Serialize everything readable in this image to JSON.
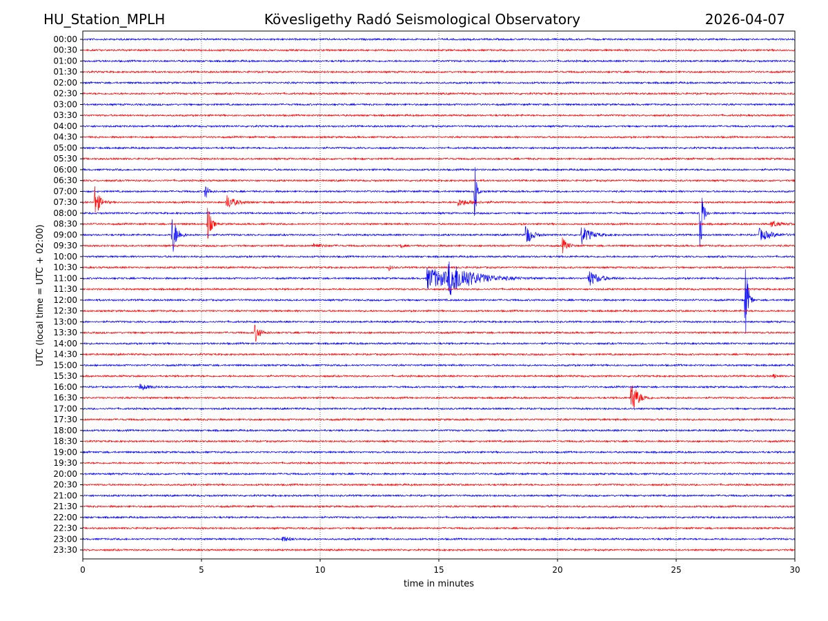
{
  "header": {
    "station": "HU_Station_MPLH",
    "title": "Kövesligethy Radó Seismological Observatory",
    "date": "2026-04-07"
  },
  "chart_data": {
    "type": "line",
    "subtype": "helicorder",
    "xlabel": "time in minutes",
    "ylabel": "UTC (local time = UTC + 02:00)",
    "xlim": [
      0,
      30
    ],
    "xticks": [
      "0",
      "5",
      "10",
      "15",
      "20",
      "25",
      "30"
    ],
    "grid": "vertical dotted at 5-minute intervals",
    "trace_colors": [
      "#0000ff",
      "#ff0000"
    ],
    "rows": [
      "00:00",
      "00:30",
      "01:00",
      "01:30",
      "02:00",
      "02:30",
      "03:00",
      "03:30",
      "04:00",
      "04:30",
      "05:00",
      "05:30",
      "06:00",
      "06:30",
      "07:00",
      "07:30",
      "08:00",
      "08:30",
      "09:00",
      "09:30",
      "10:00",
      "10:30",
      "11:00",
      "11:30",
      "12:00",
      "12:30",
      "13:00",
      "13:30",
      "14:00",
      "14:30",
      "15:00",
      "15:30",
      "16:00",
      "16:30",
      "17:00",
      "17:30",
      "18:00",
      "18:30",
      "19:00",
      "19:30",
      "20:00",
      "20:30",
      "21:00",
      "21:30",
      "22:00",
      "22:30",
      "23:00",
      "23:30"
    ],
    "background_noise_relative_amplitude": 1.5,
    "events": [
      {
        "row": "07:30",
        "minute": 0.5,
        "amplitude": 26,
        "duration": 0.35
      },
      {
        "row": "07:00",
        "minute": 5.15,
        "amplitude": 12,
        "duration": 0.25
      },
      {
        "row": "07:30",
        "minute": 6.05,
        "amplitude": 11,
        "duration": 0.6
      },
      {
        "row": "07:30",
        "minute": 15.8,
        "amplitude": 5,
        "duration": 1.0
      },
      {
        "row": "07:00",
        "minute": 16.5,
        "amplitude": 62,
        "duration": 0.15
      },
      {
        "row": "08:30",
        "minute": 5.25,
        "amplitude": 30,
        "duration": 0.25
      },
      {
        "row": "09:00",
        "minute": 3.75,
        "amplitude": 34,
        "duration": 0.35
      },
      {
        "row": "09:30",
        "minute": 9.7,
        "amplitude": 4,
        "duration": 0.6
      },
      {
        "row": "09:30",
        "minute": 13.4,
        "amplitude": 4,
        "duration": 0.15
      },
      {
        "row": "10:30",
        "minute": 12.9,
        "amplitude": 4,
        "duration": 0.2
      },
      {
        "row": "11:00",
        "minute": 14.5,
        "amplitude": 16,
        "duration": 2.5
      },
      {
        "row": "11:00",
        "minute": 15.4,
        "amplitude": 20,
        "duration": 1.5
      },
      {
        "row": "09:00",
        "minute": 18.65,
        "amplitude": 18,
        "duration": 0.45
      },
      {
        "row": "09:30",
        "minute": 20.2,
        "amplitude": 12,
        "duration": 0.35
      },
      {
        "row": "09:00",
        "minute": 21.0,
        "amplitude": 14,
        "duration": 0.7
      },
      {
        "row": "11:00",
        "minute": 21.3,
        "amplitude": 12,
        "duration": 0.8
      },
      {
        "row": "08:00",
        "minute": 26.0,
        "amplitude": 70,
        "duration": 0.2
      },
      {
        "row": "08:30",
        "minute": 29.0,
        "amplitude": 5,
        "duration": 0.6
      },
      {
        "row": "09:00",
        "minute": 28.5,
        "amplitude": 9,
        "duration": 0.9
      },
      {
        "row": "12:00",
        "minute": 27.9,
        "amplitude": 75,
        "duration": 0.2
      },
      {
        "row": "13:30",
        "minute": 7.25,
        "amplitude": 15,
        "duration": 0.35
      },
      {
        "row": "15:30",
        "minute": 29.1,
        "amplitude": 4,
        "duration": 0.2
      },
      {
        "row": "16:00",
        "minute": 2.4,
        "amplitude": 5,
        "duration": 0.6
      },
      {
        "row": "16:30",
        "minute": 23.1,
        "amplitude": 30,
        "duration": 0.45
      },
      {
        "row": "23:00",
        "minute": 8.4,
        "amplitude": 4,
        "duration": 0.6
      }
    ]
  }
}
